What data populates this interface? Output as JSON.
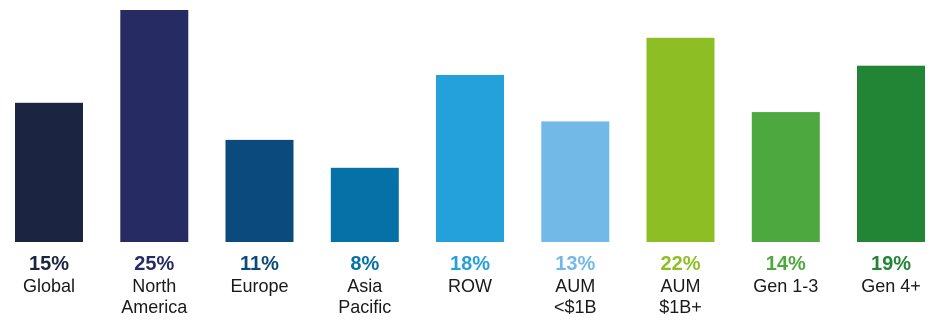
{
  "chart_data": {
    "type": "bar",
    "title": "",
    "xlabel": "",
    "ylabel": "",
    "ylim": [
      0,
      25
    ],
    "grid": false,
    "legend": "none",
    "categories": [
      "Global",
      "North\nAmerica",
      "Europe",
      "Asia\nPacific",
      "ROW",
      "AUM\n<$1B",
      "AUM\n$1B+",
      "Gen 1-3",
      "Gen 4+"
    ],
    "values": [
      15,
      25,
      11,
      8,
      18,
      13,
      22,
      14,
      19
    ],
    "value_labels": [
      "15%",
      "25%",
      "11%",
      "8%",
      "18%",
      "13%",
      "22%",
      "14%",
      "19%"
    ],
    "bar_colors": [
      "#1b2542",
      "#272b64",
      "#0a4a7c",
      "#0571a7",
      "#24a0db",
      "#72b9e7",
      "#8dbf24",
      "#4da93f",
      "#228535"
    ],
    "label_colors": [
      "#1b2542",
      "#272b64",
      "#0a4a7c",
      "#0571a7",
      "#24a0db",
      "#72b9e7",
      "#8dbf24",
      "#4da93f",
      "#228535"
    ]
  }
}
